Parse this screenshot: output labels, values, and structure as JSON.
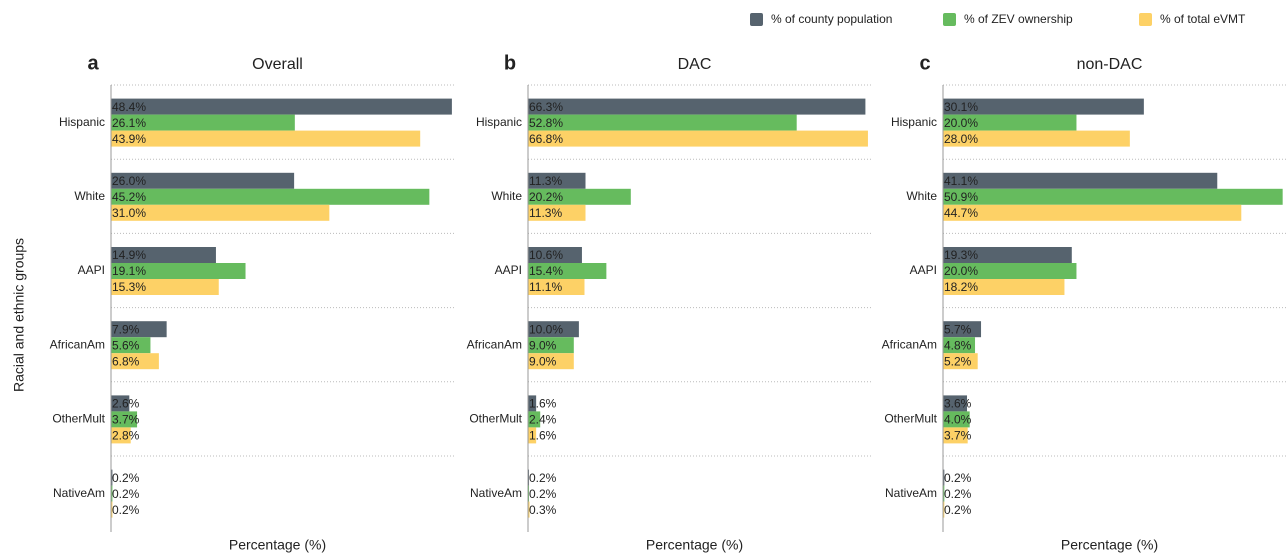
{
  "chart_data": {
    "type": "bar",
    "orientation": "horizontal",
    "ylabel": "Racial and ethnic groups",
    "xlabel": "Percentage (%)",
    "categories": [
      "Hispanic",
      "White",
      "AAPI",
      "AfricanAm",
      "OtherMult",
      "NativeAm"
    ],
    "series": [
      {
        "name": "% of county population",
        "color": "#56636e"
      },
      {
        "name": "% of ZEV ownership",
        "color": "#66bb5e"
      },
      {
        "name": "% of total eVMT",
        "color": "#fdd166"
      }
    ],
    "panels": [
      {
        "letter": "a",
        "title": "Overall",
        "xlim": [
          0,
          48.7
        ],
        "values": [
          [
            48.4,
            26.0,
            14.9,
            7.9,
            2.6,
            0.2
          ],
          [
            26.1,
            45.2,
            19.1,
            5.6,
            3.7,
            0.2
          ],
          [
            43.9,
            31.0,
            15.3,
            6.8,
            2.8,
            0.2
          ]
        ],
        "value_labels": [
          [
            "48.4%",
            "26.0%",
            "14.9%",
            "7.9%",
            "2.6%",
            "0.2%"
          ],
          [
            "26.1%",
            "45.2%",
            "19.1%",
            "5.6%",
            "3.7%",
            "0.2%"
          ],
          [
            "43.9%",
            "31.0%",
            "15.3%",
            "6.8%",
            "2.8%",
            "0.2%"
          ]
        ]
      },
      {
        "letter": "b",
        "title": "DAC",
        "xlim": [
          0,
          67.4
        ],
        "values": [
          [
            66.3,
            11.3,
            10.6,
            10.0,
            1.6,
            0.2
          ],
          [
            52.8,
            20.2,
            15.4,
            9.0,
            2.4,
            0.2
          ],
          [
            66.8,
            11.3,
            11.1,
            9.0,
            1.6,
            0.3
          ]
        ],
        "value_labels": [
          [
            "66.3%",
            "11.3%",
            "10.6%",
            "10.0%",
            "1.6%",
            "0.2%"
          ],
          [
            "52.8%",
            "20.2%",
            "15.4%",
            "9.0%",
            "2.4%",
            "0.2%"
          ],
          [
            "66.8%",
            "11.3%",
            "11.1%",
            "9.0%",
            "1.6%",
            "0.3%"
          ]
        ]
      },
      {
        "letter": "c",
        "title": "non-DAC",
        "xlim": [
          0,
          51.4
        ],
        "values": [
          [
            30.1,
            41.1,
            19.3,
            5.7,
            3.6,
            0.2
          ],
          [
            20.0,
            50.9,
            20.0,
            4.8,
            4.0,
            0.2
          ],
          [
            28.0,
            44.7,
            18.2,
            5.2,
            3.7,
            0.2
          ]
        ],
        "value_labels": [
          [
            "30.1%",
            "41.1%",
            "19.3%",
            "5.7%",
            "3.6%",
            "0.2%"
          ],
          [
            "20.0%",
            "50.9%",
            "20.0%",
            "4.8%",
            "4.0%",
            "0.2%"
          ],
          [
            "28.0%",
            "44.7%",
            "18.2%",
            "5.2%",
            "3.7%",
            "0.2%"
          ]
        ]
      }
    ]
  }
}
